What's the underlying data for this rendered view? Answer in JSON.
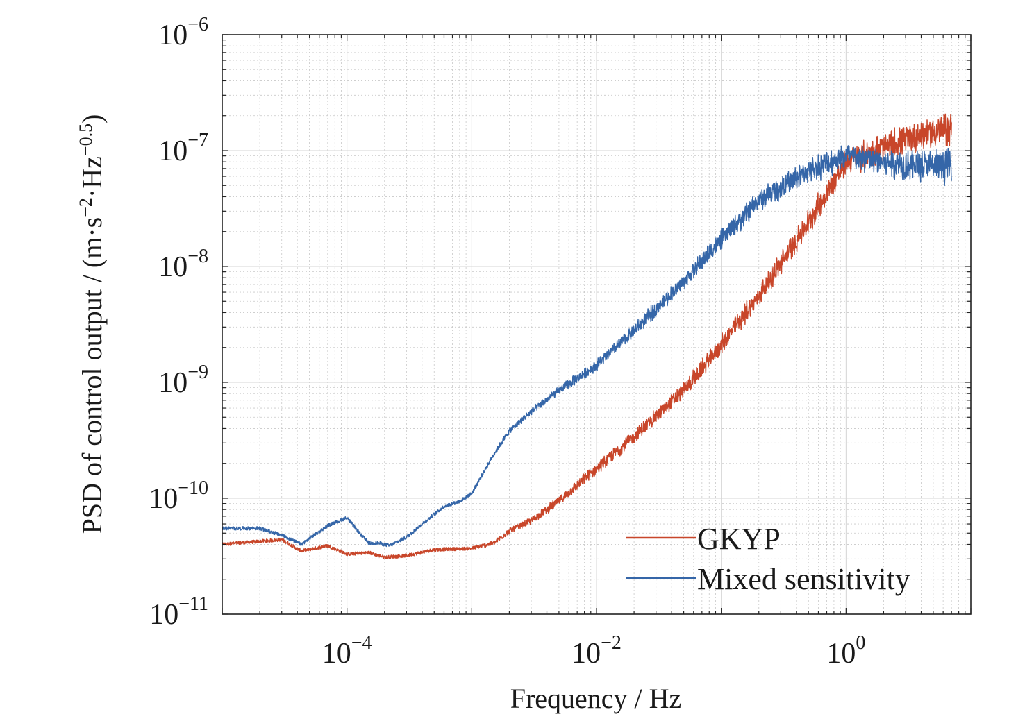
{
  "chart_data": {
    "type": "line",
    "title": "",
    "xlabel": "Frequency / Hz",
    "ylabel": {
      "prefix": "PSD of control output / (m·s",
      "exp1": "−2",
      "mid": "·Hz",
      "exp2": "−0.5",
      "suffix": ")"
    },
    "x_scale": "log",
    "y_scale": "log",
    "xlim": [
      1e-05,
      10.0
    ],
    "ylim": [
      1e-11,
      1e-06
    ],
    "grid": "major and minor",
    "legend_position": "lower-right",
    "x_ticks": [
      {
        "value": 0.0001,
        "base": "10",
        "exp": "−4"
      },
      {
        "value": 0.01,
        "base": "10",
        "exp": "−2"
      },
      {
        "value": 1,
        "base": "10",
        "exp": "0"
      }
    ],
    "y_ticks": [
      {
        "value": 1e-06,
        "base": "10",
        "exp": "−6"
      },
      {
        "value": 1e-07,
        "base": "10",
        "exp": "−7"
      },
      {
        "value": 1e-08,
        "base": "10",
        "exp": "−8"
      },
      {
        "value": 1e-09,
        "base": "10",
        "exp": "−9"
      },
      {
        "value": 1e-10,
        "base": "10",
        "exp": "−10"
      },
      {
        "value": 1e-11,
        "base": "10",
        "exp": "−11"
      }
    ],
    "series": [
      {
        "name": "GKYP",
        "color": "#c8462a",
        "band_to_x": 7,
        "x": [
          1e-05,
          3e-05,
          4.3e-05,
          7e-05,
          0.0001,
          0.00015,
          0.0002,
          0.0003,
          0.0005,
          0.001,
          0.0015,
          0.002,
          0.003,
          0.005,
          0.01,
          0.02,
          0.05,
          0.1,
          0.2,
          0.5,
          1,
          2,
          3,
          5,
          7
        ],
        "y": [
          4e-11,
          4.4e-11,
          3.5e-11,
          3.9e-11,
          3.3e-11,
          3.4e-11,
          3.1e-11,
          3.2e-11,
          3.6e-11,
          3.7e-11,
          4.1e-11,
          5.2e-11,
          6.4e-11,
          9.5e-11,
          1.8e-10,
          3.4e-10,
          8.5e-10,
          2.1e-09,
          5.6e-09,
          2.4e-08,
          8e-08,
          1.05e-07,
          1.25e-07,
          1.45e-07,
          1.55e-07
        ]
      },
      {
        "name": "Mixed sensitivity",
        "color": "#3566a8",
        "band_to_x": 7,
        "x": [
          1e-05,
          2e-05,
          3e-05,
          4.3e-05,
          7e-05,
          0.0001,
          0.00013,
          0.00015,
          0.00018,
          0.00022,
          0.0003,
          0.0004,
          0.0006,
          0.0008,
          0.001,
          0.0015,
          0.002,
          0.003,
          0.005,
          0.01,
          0.02,
          0.05,
          0.1,
          0.2,
          0.5,
          1,
          2,
          3,
          5,
          7
        ],
        "y": [
          5.5e-11,
          5.5e-11,
          4.8e-11,
          4e-11,
          5.8e-11,
          6.8e-11,
          4.8e-11,
          4.1e-11,
          4.1e-11,
          3.9e-11,
          4.6e-11,
          6e-11,
          8.5e-11,
          9.4e-11,
          1.1e-10,
          2.4e-10,
          3.8e-10,
          5.6e-10,
          8.5e-10,
          1.4e-09,
          2.8e-09,
          7.4e-09,
          1.7e-08,
          3.7e-08,
          6.7e-08,
          9e-08,
          8e-08,
          7.6e-08,
          7.3e-08,
          7.4e-08
        ]
      }
    ]
  }
}
